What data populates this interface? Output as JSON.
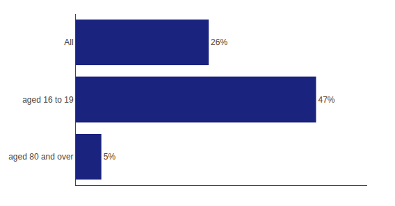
{
  "chart_data": {
    "type": "bar",
    "orientation": "horizontal",
    "categories": [
      "aged 80 and over",
      "aged 16 to 19",
      "All"
    ],
    "values": [
      5,
      47,
      26
    ],
    "value_labels": [
      "5%",
      "47%",
      "26%"
    ],
    "data_labels": true,
    "color": "#1a237e",
    "xlim": [
      0,
      57
    ],
    "tick_labels": "y",
    "grid": false
  }
}
